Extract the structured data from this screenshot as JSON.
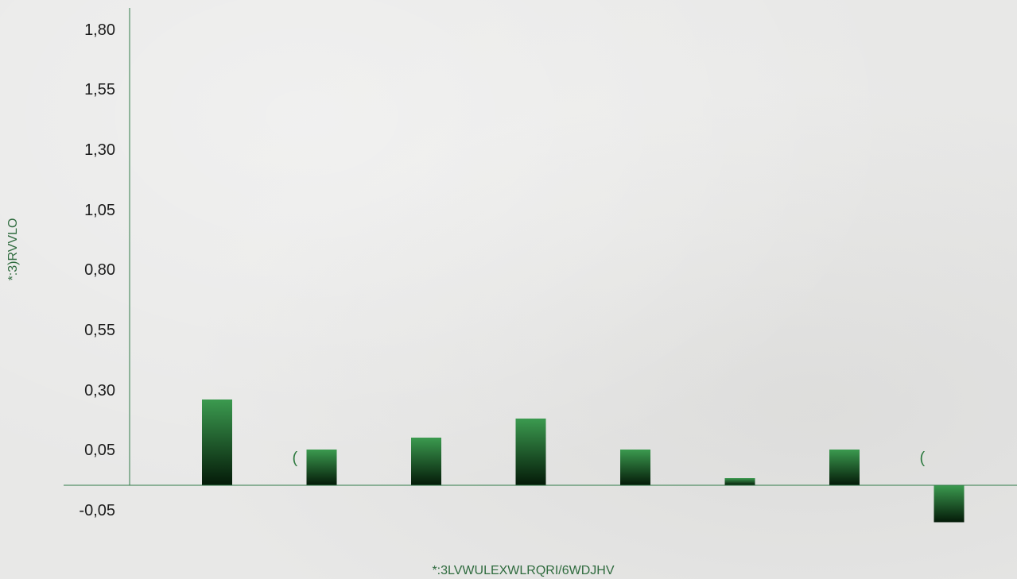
{
  "chart_data": {
    "type": "bar",
    "title": "",
    "xlabel": "*:3LVWULEXWLRQRI/6WDJHV",
    "ylabel": "*:3)RVVLO",
    "ylim": [
      -0.05,
      1.8
    ],
    "y_ticks": [
      "1,80",
      "1,55",
      "1,30",
      "1,05",
      "0,80",
      "0,55",
      "0,30",
      "0,05",
      "-0,05"
    ],
    "y_tick_values": [
      1.8,
      1.55,
      1.3,
      1.05,
      0.8,
      0.55,
      0.3,
      0.05,
      -0.05
    ],
    "categories": [
      "",
      "",
      "",
      "",
      "",
      "",
      "",
      ""
    ],
    "values": [
      0.26,
      0.05,
      0.1,
      0.18,
      0.05,
      0.01,
      0.05,
      -0.075
    ],
    "annotations": [
      {
        "text": "(",
        "category_index": 1
      },
      {
        "text": "(",
        "category_index": 7
      }
    ],
    "grid": false,
    "legend": "none",
    "colors": {
      "bar_top": "#3b9a4f",
      "bar_bottom": "#041a08",
      "axis": "#2f7a47",
      "tick_text": "#1c1c1c",
      "axis_title": "#2f6b3e",
      "annotation": "#2d7a3f"
    }
  }
}
